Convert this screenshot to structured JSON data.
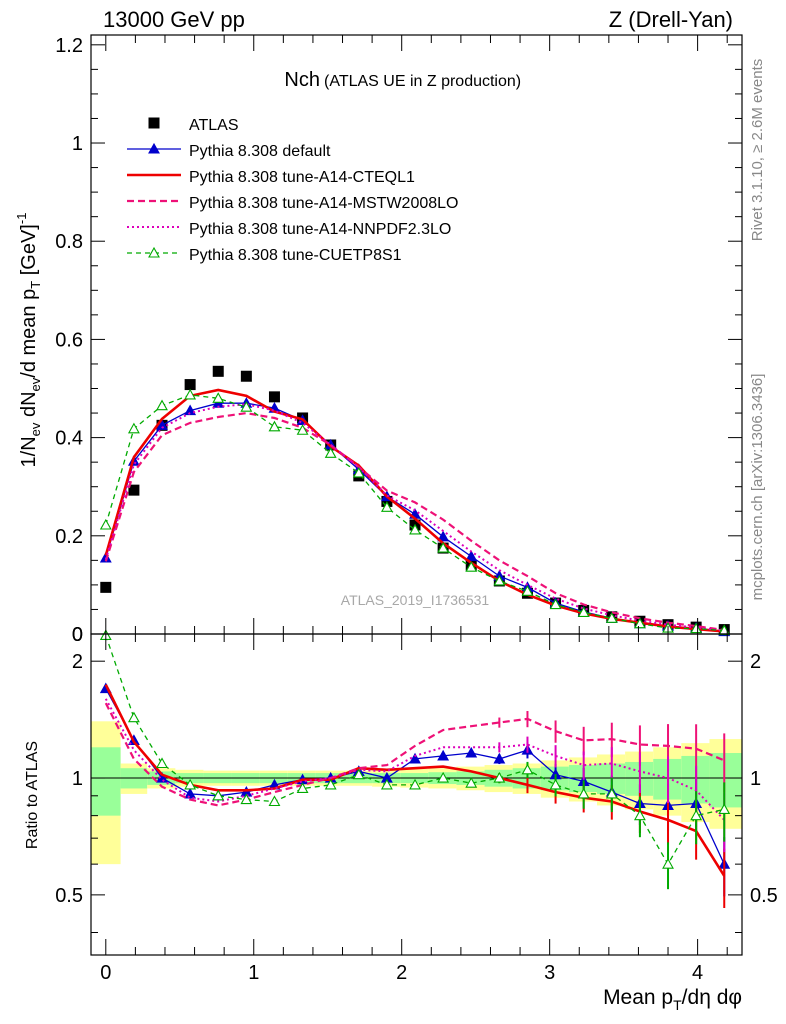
{
  "header": {
    "left": "13000 GeV pp",
    "right": "Z (Drell-Yan)"
  },
  "side_labels": {
    "rivet": "Rivet 3.1.10, ≥ 2.6M events",
    "mcplots": "mcplots.cern.ch [arXiv:1306.3436]"
  },
  "watermark": "ATLAS_2019_I1736531",
  "chart_data": [
    {
      "type": "line",
      "panel": "main",
      "title_main": "Nch",
      "title_sub": "(ATLAS UE in Z production)",
      "ylabel": "1/N_ev dN_ev/d mean p_T [GeV]^-1",
      "xlim": [
        -0.1,
        4.3
      ],
      "ylim": [
        0,
        1.22
      ],
      "ytick_labels": [
        "0",
        "0.2",
        "0.4",
        "0.6",
        "0.8",
        "1",
        "1.2"
      ],
      "x": [
        0.0,
        0.19,
        0.38,
        0.57,
        0.76,
        0.95,
        1.14,
        1.33,
        1.52,
        1.71,
        1.9,
        2.09,
        2.28,
        2.47,
        2.66,
        2.85,
        3.04,
        3.23,
        3.42,
        3.61,
        3.8,
        3.99,
        4.18
      ],
      "series": [
        {
          "name": "ATLAS",
          "style": "data",
          "color": "#000000",
          "values": [
            0.095,
            0.293,
            0.425,
            0.508,
            0.535,
            0.525,
            0.483,
            0.44,
            0.385,
            0.322,
            0.27,
            0.222,
            0.175,
            0.14,
            0.108,
            0.083,
            0.063,
            0.048,
            0.035,
            0.026,
            0.019,
            0.014,
            0.009
          ]
        },
        {
          "name": "Pythia 8.308 default",
          "style": "line-triangle",
          "color": "#0000cc",
          "values": [
            0.155,
            0.352,
            0.425,
            0.455,
            0.47,
            0.47,
            0.46,
            0.435,
            0.385,
            0.335,
            0.28,
            0.244,
            0.198,
            0.158,
            0.118,
            0.095,
            0.063,
            0.045,
            0.032,
            0.021,
            0.016,
            0.012,
            0.005
          ]
        },
        {
          "name": "Pythia 8.308 tune-A14-CTEQL1",
          "style": "solid",
          "color": "#ee0000",
          "values": [
            0.16,
            0.36,
            0.438,
            0.485,
            0.497,
            0.485,
            0.453,
            0.437,
            0.382,
            0.343,
            0.28,
            0.235,
            0.185,
            0.145,
            0.108,
            0.08,
            0.058,
            0.042,
            0.031,
            0.023,
            0.015,
            0.01,
            0.005
          ]
        },
        {
          "name": "Pythia 8.308 tune-A14-MSTW2008LO",
          "style": "dashed",
          "color": "#ee1177",
          "values": [
            0.148,
            0.33,
            0.405,
            0.43,
            0.442,
            0.45,
            0.44,
            0.42,
            0.385,
            0.34,
            0.292,
            0.268,
            0.233,
            0.19,
            0.15,
            0.118,
            0.083,
            0.06,
            0.044,
            0.032,
            0.023,
            0.016,
            0.008
          ]
        },
        {
          "name": "Pythia 8.308 tune-A14-NNPDF2.3LO",
          "style": "dotted",
          "color": "#dd00bb",
          "values": [
            0.152,
            0.345,
            0.42,
            0.45,
            0.463,
            0.468,
            0.455,
            0.43,
            0.385,
            0.34,
            0.282,
            0.252,
            0.21,
            0.168,
            0.13,
            0.1,
            0.072,
            0.052,
            0.038,
            0.027,
            0.019,
            0.013,
            0.007
          ]
        },
        {
          "name": "Pythia 8.308 tune-CUETP8S1",
          "style": "dashed-open-triangle",
          "color": "#00aa00",
          "values": [
            0.222,
            0.418,
            0.465,
            0.487,
            0.48,
            0.462,
            0.422,
            0.415,
            0.368,
            0.328,
            0.258,
            0.212,
            0.175,
            0.136,
            0.108,
            0.087,
            0.06,
            0.044,
            0.032,
            0.021,
            0.012,
            0.011,
            0.007
          ]
        }
      ]
    },
    {
      "type": "line",
      "panel": "ratio",
      "ylabel": "Ratio to ATLAS",
      "xlabel": "Mean p_T/dη dφ",
      "ylim": [
        0.35,
        2.35
      ],
      "ytick_labels": [
        "0.5",
        "1",
        "2"
      ],
      "xtick_labels": [
        "0",
        "1",
        "2",
        "3",
        "4"
      ],
      "x": [
        0.0,
        0.19,
        0.38,
        0.57,
        0.76,
        0.95,
        1.14,
        1.33,
        1.52,
        1.71,
        1.9,
        2.09,
        2.28,
        2.47,
        2.66,
        2.85,
        3.04,
        3.23,
        3.42,
        3.61,
        3.8,
        3.99,
        4.18
      ],
      "band_edges": [
        -0.1,
        0.1,
        0.28,
        0.47,
        0.66,
        0.85,
        1.04,
        1.23,
        1.42,
        1.61,
        1.8,
        1.99,
        2.18,
        2.37,
        2.56,
        2.75,
        2.94,
        3.13,
        3.32,
        3.51,
        3.7,
        3.89,
        4.08,
        4.3
      ],
      "band_stat": [
        0.2,
        0.06,
        0.04,
        0.03,
        0.03,
        0.03,
        0.03,
        0.03,
        0.03,
        0.03,
        0.03,
        0.03,
        0.035,
        0.04,
        0.05,
        0.06,
        0.07,
        0.08,
        0.09,
        0.1,
        0.12,
        0.14,
        0.16
      ],
      "band_syst": [
        0.4,
        0.09,
        0.06,
        0.05,
        0.045,
        0.045,
        0.045,
        0.045,
        0.045,
        0.045,
        0.05,
        0.055,
        0.06,
        0.07,
        0.08,
        0.09,
        0.11,
        0.13,
        0.15,
        0.17,
        0.2,
        0.23,
        0.26
      ],
      "series": [
        {
          "name": "Pythia 8.308 default",
          "style": "line-triangle",
          "color": "#0000cc",
          "values": [
            1.7,
            1.25,
            1.0,
            0.91,
            0.9,
            0.92,
            0.96,
            0.99,
            1.0,
            1.04,
            1.0,
            1.12,
            1.14,
            1.16,
            1.12,
            1.18,
            1.02,
            0.98,
            0.92,
            0.86,
            0.85,
            0.86,
            0.6
          ]
        },
        {
          "name": "Pythia 8.308 tune-A14-CTEQL1",
          "style": "solid",
          "color": "#ee0000",
          "values": [
            1.74,
            1.24,
            1.02,
            0.96,
            0.93,
            0.93,
            0.94,
            0.99,
            0.99,
            1.06,
            1.05,
            1.06,
            1.07,
            1.04,
            1.0,
            0.96,
            0.92,
            0.89,
            0.87,
            0.82,
            0.78,
            0.73,
            0.56
          ]
        },
        {
          "name": "Pythia 8.308 tune-A14-MSTW2008LO",
          "style": "dashed",
          "color": "#ee1177",
          "values": [
            1.56,
            1.12,
            0.95,
            0.88,
            0.85,
            0.88,
            0.92,
            0.96,
            1.0,
            1.06,
            1.08,
            1.21,
            1.33,
            1.36,
            1.39,
            1.42,
            1.32,
            1.25,
            1.26,
            1.22,
            1.21,
            1.19,
            1.11
          ]
        },
        {
          "name": "Pythia 8.308 tune-A14-NNPDF2.3LO",
          "style": "dotted",
          "color": "#dd00bb",
          "values": [
            1.6,
            1.18,
            0.99,
            0.89,
            0.87,
            0.9,
            0.94,
            0.98,
            1.0,
            1.05,
            1.04,
            1.14,
            1.2,
            1.2,
            1.2,
            1.22,
            1.14,
            1.08,
            1.09,
            1.04,
            1.0,
            0.93,
            0.78
          ]
        },
        {
          "name": "Pythia 8.308 tune-CUETP8S1",
          "style": "dashed-open-triangle",
          "color": "#00aa00",
          "values": [
            2.33,
            1.43,
            1.09,
            0.96,
            0.9,
            0.88,
            0.87,
            0.94,
            0.96,
            1.02,
            0.96,
            0.96,
            1.0,
            0.97,
            1.0,
            1.05,
            0.96,
            0.91,
            0.91,
            0.8,
            0.6,
            0.8,
            0.83
          ]
        }
      ]
    }
  ]
}
